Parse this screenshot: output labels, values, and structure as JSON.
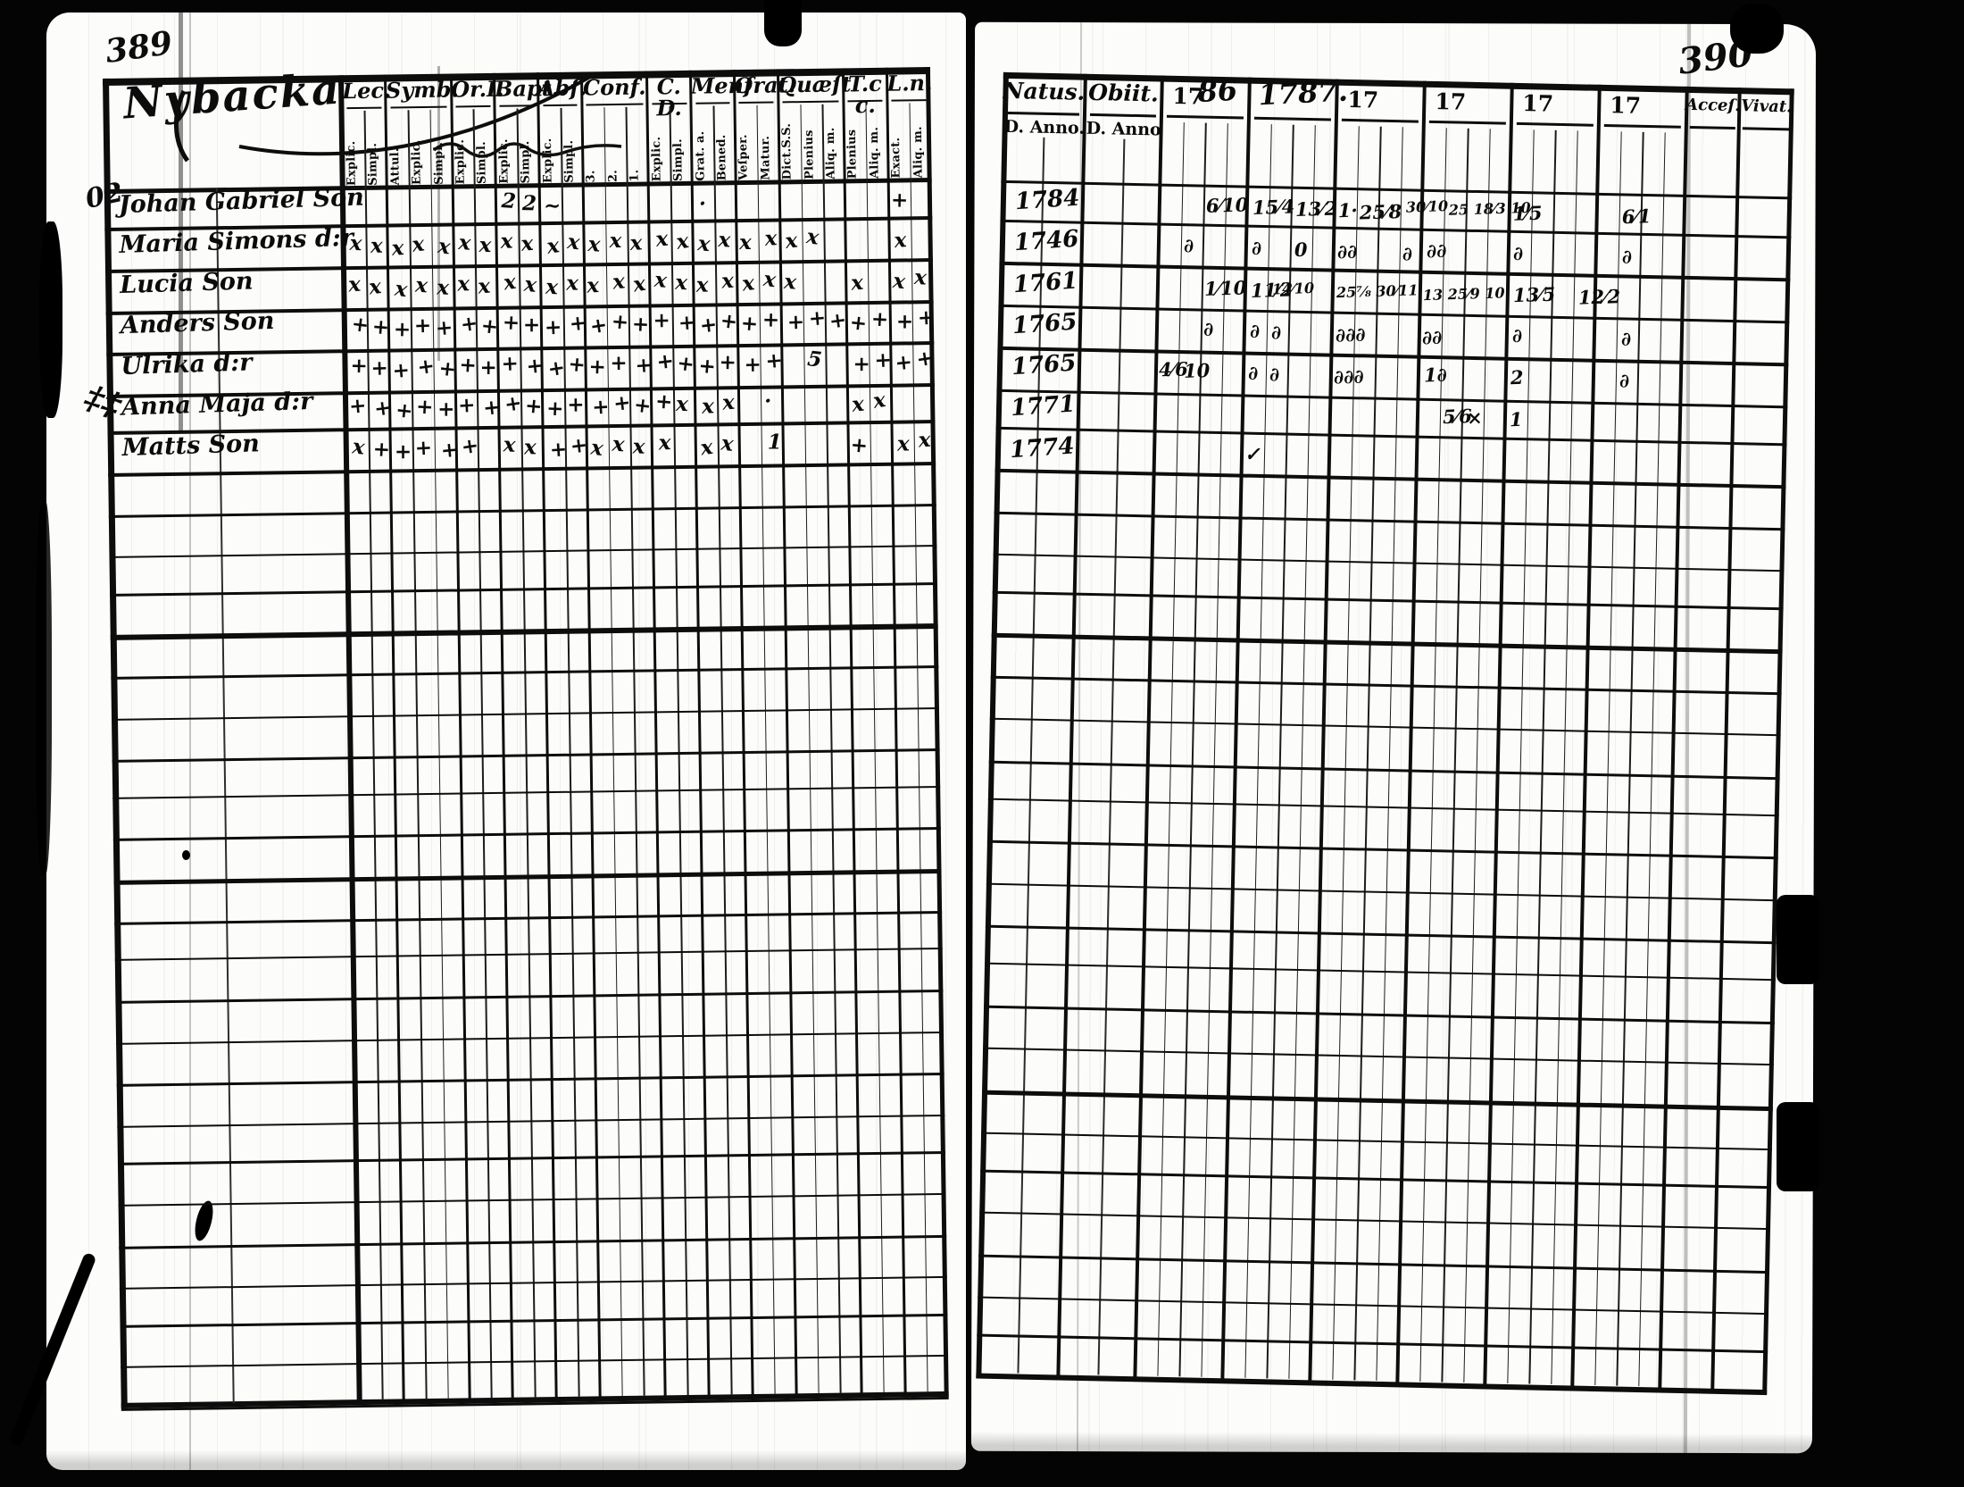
{
  "left_page": {
    "page_number": "389",
    "title": "Nybacka",
    "margin_notes": [
      {
        "text": "02"
      },
      {
        "text": "‡‡"
      }
    ],
    "header_columns": [
      {
        "label": "Lec.",
        "subs": [
          "Explic.",
          "Simpl."
        ]
      },
      {
        "label": "Symb.",
        "subs": [
          "Attul.",
          "Explic.",
          "Simpl."
        ]
      },
      {
        "label": "Or.I.",
        "subs": [
          "Explic.",
          "Simpl."
        ]
      },
      {
        "label": "Bapt.",
        "subs": [
          "Explic.",
          "Simpl."
        ]
      },
      {
        "label": "Abſ.",
        "subs": [
          "Explic.",
          "Simpl."
        ]
      },
      {
        "label": "Conf.",
        "subs": [
          "3.",
          "2.",
          "1."
        ]
      },
      {
        "label": "C. D.",
        "subs": [
          "Explic.",
          "Simpl."
        ]
      },
      {
        "label": "Menſ.",
        "subs": [
          "Grat. a.",
          "Bened."
        ]
      },
      {
        "label": "Orat.",
        "subs": [
          "Veſper.",
          "Matur."
        ]
      },
      {
        "label": "Quæſt.",
        "subs": [
          "Dict.S.S.",
          "Plenius",
          "Aliq. m."
        ]
      },
      {
        "label": "T.c c.",
        "subs": [
          "Plenius",
          "Aliq. m."
        ]
      },
      {
        "label": "L.n.",
        "subs": [
          "Exact.",
          "Aliq. m."
        ]
      }
    ],
    "entries": [
      {
        "name": "Johan Gabriel Son",
        "marks": "       22~      ·        + "
      },
      {
        "name": "Maria Simons d:r",
        "marks": "xxxxxxxxxxxxxxxxxxxxxx   x "
      },
      {
        "name": "Lucia Son",
        "marks": "xxxxxxxxxxxxxxxxxxxxx  x xx"
      },
      {
        "name": "Anders Son",
        "marks": "+++++++++++++++++++++++++++"
      },
      {
        "name": "Ulrika d:r",
        "marks": "++++++++++++++++++++ 5 ++++"
      },
      {
        "name": "Anna Maja d:r",
        "marks": "+++++++++++++++xxx ·   xx  "
      },
      {
        "name": "Matts Son",
        "marks": "x+++++ xx++xxxx xx 1   + xx"
      }
    ]
  },
  "right_page": {
    "page_number": "390",
    "col_natus": {
      "label": "Natus.",
      "sub": "D. Anno."
    },
    "col_obiit": {
      "label": "Obiit.",
      "sub": "D. Anno"
    },
    "year_columns": [
      {
        "printed": "17",
        "written": "86"
      },
      {
        "printed": "",
        "written": "1787."
      },
      {
        "printed": "17",
        "written": ""
      },
      {
        "printed": "17",
        "written": ""
      },
      {
        "printed": "17",
        "written": ""
      },
      {
        "printed": "17",
        "written": ""
      }
    ],
    "col_acces": {
      "label": "Acceſ."
    },
    "col_vivat": {
      "label": "Vivat."
    },
    "rows": [
      {
        "natus": "1784",
        "marks": [
          {
            "c": 2,
            "s": 2,
            "t": "6⁄10"
          },
          {
            "c": 3,
            "s": 0,
            "t": "15⁄4"
          },
          {
            "c": 3,
            "s": 2,
            "t": "13⁄2"
          },
          {
            "c": 4,
            "s": 0,
            "t": "1·"
          },
          {
            "c": 4,
            "s": 1,
            "t": "25⁄8"
          },
          {
            "c": 4,
            "s": 3,
            "t": "30⁄10"
          },
          {
            "c": 5,
            "s": 1,
            "t": "25 18⁄3 10"
          },
          {
            "c": 6,
            "s": 0,
            "t": "1⁄5"
          },
          {
            "c": 7,
            "s": 1,
            "t": "6⁄1"
          }
        ]
      },
      {
        "natus": "1746",
        "marks": [
          {
            "c": 2,
            "s": 1,
            "t": "∂"
          },
          {
            "c": 3,
            "s": 0,
            "t": "∂"
          },
          {
            "c": 3,
            "s": 2,
            "t": "0"
          },
          {
            "c": 4,
            "s": 0,
            "t": "∂∂"
          },
          {
            "c": 4,
            "s": 3,
            "t": "∂"
          },
          {
            "c": 5,
            "s": 0,
            "t": "∂∂"
          },
          {
            "c": 6,
            "s": 0,
            "t": "∂"
          },
          {
            "c": 7,
            "s": 1,
            "t": "∂"
          }
        ]
      },
      {
        "natus": "1761",
        "marks": [
          {
            "c": 2,
            "s": 2,
            "t": "1⁄10"
          },
          {
            "c": 3,
            "s": 0,
            "t": "11⁄2"
          },
          {
            "c": 3,
            "s": 1,
            "t": "14⁄10"
          },
          {
            "c": 4,
            "s": 0,
            "t": "25⅞ 30⁄11"
          },
          {
            "c": 5,
            "s": 0,
            "t": "13 25⁄9 10"
          },
          {
            "c": 6,
            "s": 0,
            "t": "13⁄5"
          },
          {
            "c": 6,
            "s": 3,
            "t": "12⁄2"
          }
        ]
      },
      {
        "natus": "1765",
        "marks": [
          {
            "c": 2,
            "s": 2,
            "t": "∂"
          },
          {
            "c": 3,
            "s": 0,
            "t": "∂"
          },
          {
            "c": 3,
            "s": 1,
            "t": "∂"
          },
          {
            "c": 4,
            "s": 0,
            "t": "∂∂∂"
          },
          {
            "c": 5,
            "s": 0,
            "t": "∂∂"
          },
          {
            "c": 6,
            "s": 0,
            "t": "∂"
          },
          {
            "c": 7,
            "s": 1,
            "t": "∂"
          }
        ]
      },
      {
        "natus": "1765",
        "marks": [
          {
            "c": 2,
            "s": 0,
            "t": "4⁄6"
          },
          {
            "c": 2,
            "s": 1,
            "t": "10"
          },
          {
            "c": 3,
            "s": 0,
            "t": "∂"
          },
          {
            "c": 3,
            "s": 1,
            "t": "∂"
          },
          {
            "c": 4,
            "s": 0,
            "t": "∂∂∂"
          },
          {
            "c": 5,
            "s": 0,
            "t": "1∂"
          },
          {
            "c": 6,
            "s": 0,
            "t": "2"
          },
          {
            "c": 7,
            "s": 1,
            "t": "∂"
          }
        ]
      },
      {
        "natus": "1771",
        "marks": [
          {
            "c": 5,
            "s": 1,
            "t": "5⁄6"
          },
          {
            "c": 5,
            "s": 2,
            "t": "×"
          },
          {
            "c": 6,
            "s": 0,
            "t": "1"
          }
        ]
      },
      {
        "natus": "1774",
        "marks": [
          {
            "c": 3,
            "s": 0,
            "t": "✓"
          }
        ]
      }
    ]
  }
}
